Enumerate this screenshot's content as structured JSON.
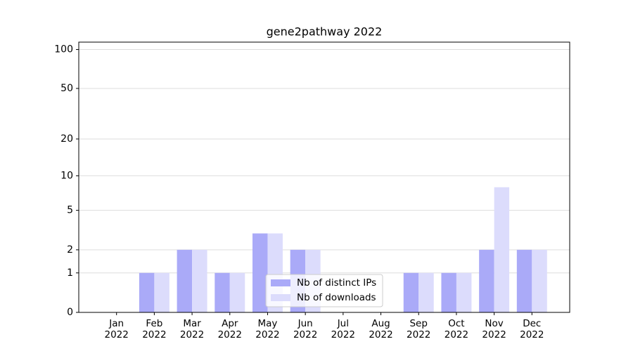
{
  "chart_data": {
    "type": "bar",
    "title": "gene2pathway 2022",
    "categories": [
      "Jan 2022",
      "Feb 2022",
      "Mar 2022",
      "Apr 2022",
      "May 2022",
      "Jun 2022",
      "Jul 2022",
      "Aug 2022",
      "Sep 2022",
      "Oct 2022",
      "Nov 2022",
      "Dec 2022"
    ],
    "series": [
      {
        "name": "Nb of distinct IPs",
        "color": "#aaaaf8",
        "values": [
          0,
          1,
          2,
          1,
          3,
          2,
          0,
          0,
          1,
          1,
          2,
          2
        ]
      },
      {
        "name": "Nb of downloads",
        "color": "#dcdcfc",
        "values": [
          0,
          1,
          2,
          1,
          3,
          2,
          0,
          0,
          1,
          1,
          8,
          2
        ]
      }
    ],
    "yscale": "log1p",
    "ylim": [
      0,
      114
    ],
    "yticks": [
      0,
      1,
      2,
      5,
      10,
      20,
      50,
      100
    ],
    "grid": true,
    "legend": "lower center"
  }
}
